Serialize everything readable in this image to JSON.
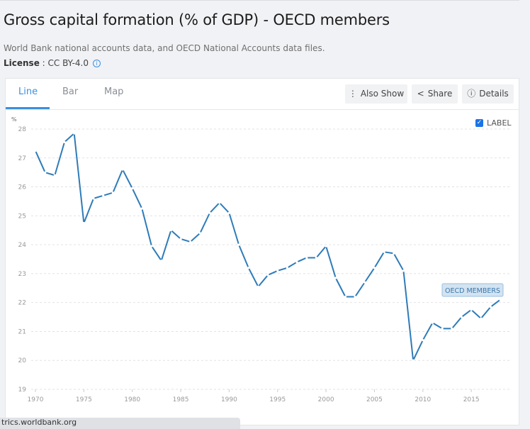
{
  "page": {
    "title": "Gross capital formation (% of GDP) - OECD members",
    "source": "World Bank national accounts data, and OECD National Accounts data files.",
    "license_label": "License",
    "license_value": " : CC BY-4.0",
    "info_icon": "info-circle-icon"
  },
  "tabs": [
    {
      "label": "Line",
      "active": true
    },
    {
      "label": "Bar",
      "active": false
    },
    {
      "label": "Map",
      "active": false
    }
  ],
  "toolbar": {
    "also_show": "Also Show",
    "share": "Share",
    "details": "Details"
  },
  "label_toggle": {
    "label": "LABEL",
    "checked": true
  },
  "status_bar": "trics.worldbank.org",
  "colors": {
    "accent": "#3b8fe0",
    "line": "#2e7bb8",
    "label_bg": "#d3e3f1"
  },
  "chart_data": {
    "type": "line",
    "ylabel": "%",
    "xlabel": "",
    "ylim": [
      19,
      28
    ],
    "yticks": [
      19,
      20,
      21,
      22,
      23,
      24,
      25,
      26,
      27,
      28
    ],
    "xticks": [
      1970,
      1975,
      1980,
      1985,
      1990,
      1995,
      2000,
      2005,
      2010,
      2015
    ],
    "grid": true,
    "series": [
      {
        "name": "OECD MEMBERS",
        "x": [
          1970,
          1971,
          1972,
          1973,
          1974,
          1975,
          1976,
          1977,
          1978,
          1979,
          1980,
          1981,
          1982,
          1983,
          1984,
          1985,
          1986,
          1987,
          1988,
          1989,
          1990,
          1991,
          1992,
          1993,
          1994,
          1995,
          1996,
          1997,
          1998,
          1999,
          2000,
          2001,
          2002,
          2003,
          2004,
          2005,
          2006,
          2007,
          2008,
          2009,
          2010,
          2011,
          2012,
          2013,
          2014,
          2015,
          2016,
          2017,
          2018
        ],
        "values": [
          27.25,
          26.5,
          26.4,
          27.55,
          27.85,
          24.75,
          25.6,
          25.7,
          25.8,
          26.6,
          25.95,
          25.25,
          23.95,
          23.45,
          24.5,
          24.2,
          24.1,
          24.4,
          25.1,
          25.45,
          25.1,
          24.0,
          23.2,
          22.55,
          22.95,
          23.1,
          23.2,
          23.4,
          23.55,
          23.55,
          23.95,
          22.85,
          22.2,
          22.2,
          22.7,
          23.2,
          23.75,
          23.7,
          23.1,
          20.0,
          20.7,
          21.3,
          21.1,
          21.1,
          21.5,
          21.75,
          21.45,
          21.85,
          22.1
        ]
      }
    ]
  }
}
